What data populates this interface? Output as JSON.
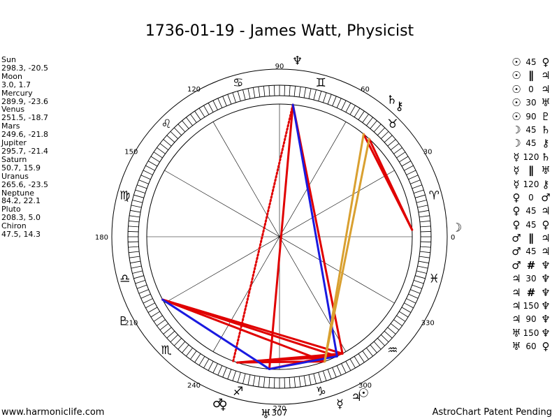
{
  "title": "1736-01-19 - James Watt, Physicist",
  "planets": [
    {
      "name": "Sun",
      "pos": "298.3, -20.5"
    },
    {
      "name": "Moon",
      "pos": "3.0, 1.7"
    },
    {
      "name": "Mercury",
      "pos": "289.9, -23.6"
    },
    {
      "name": "Venus",
      "pos": "251.5, -18.7"
    },
    {
      "name": "Mars",
      "pos": "249.6, -21.8"
    },
    {
      "name": "Jupiter",
      "pos": "295.7, -21.4"
    },
    {
      "name": "Saturn",
      "pos": "50.7, 15.9"
    },
    {
      "name": "Uranus",
      "pos": "265.6, -23.5"
    },
    {
      "name": "Neptune",
      "pos": "84.2, 22.1"
    },
    {
      "name": "Pluto",
      "pos": "208.3, 5.0"
    },
    {
      "name": "Chiron",
      "pos": "47.5, 14.3"
    }
  ],
  "aspects": [
    {
      "a": "☉",
      "type": "45",
      "b": "♀"
    },
    {
      "a": "☉",
      "type": "∥",
      "b": "♃"
    },
    {
      "a": "☉",
      "type": "0",
      "b": "♃"
    },
    {
      "a": "☉",
      "type": "30",
      "b": "♅"
    },
    {
      "a": "☉",
      "type": "90",
      "b": "♇"
    },
    {
      "a": "☽",
      "type": "45",
      "b": "♄"
    },
    {
      "a": "☽",
      "type": "45",
      "b": "⚷"
    },
    {
      "a": "☿",
      "type": "120",
      "b": "♄"
    },
    {
      "a": "☿",
      "type": "∥",
      "b": "♅"
    },
    {
      "a": "☿",
      "type": "120",
      "b": "⚷"
    },
    {
      "a": "♀",
      "type": "0",
      "b": "♂"
    },
    {
      "a": "♀",
      "type": "45",
      "b": "♃"
    },
    {
      "a": "♀",
      "type": "45",
      "b": "♀"
    },
    {
      "a": "♂",
      "type": "∥",
      "b": "♃"
    },
    {
      "a": "♂",
      "type": "45",
      "b": "♃"
    },
    {
      "a": "♂",
      "type": "#",
      "b": "♆"
    },
    {
      "a": "♃",
      "type": "30",
      "b": "♆"
    },
    {
      "a": "♃",
      "type": "#",
      "b": "♆"
    },
    {
      "a": "♃",
      "type": "150",
      "b": "♆"
    },
    {
      "a": "♃",
      "type": "90",
      "b": "♆"
    },
    {
      "a": "♅",
      "type": "150",
      "b": "♆"
    },
    {
      "a": "♅",
      "type": "60",
      "b": "♀"
    }
  ],
  "wheel": {
    "degree_labels": [
      "0",
      "30",
      "60",
      "90",
      "120",
      "150",
      "180",
      "210",
      "240",
      "270",
      "300",
      "330"
    ],
    "zodiac_signs": [
      {
        "glyph": "♈",
        "name": "aries-icon",
        "lon": 15
      },
      {
        "glyph": "♉",
        "name": "taurus-icon",
        "lon": 45
      },
      {
        "glyph": "♊",
        "name": "gemini-icon",
        "lon": 75
      },
      {
        "glyph": "♋",
        "name": "cancer-icon",
        "lon": 105
      },
      {
        "glyph": "♌",
        "name": "leo-icon",
        "lon": 135
      },
      {
        "glyph": "♍",
        "name": "virgo-icon",
        "lon": 165
      },
      {
        "glyph": "♎",
        "name": "libra-icon",
        "lon": 195
      },
      {
        "glyph": "♏",
        "name": "scorpio-icon",
        "lon": 225
      },
      {
        "glyph": "♐",
        "name": "sagittarius-icon",
        "lon": 255
      },
      {
        "glyph": "♑",
        "name": "capricorn-icon",
        "lon": 285
      },
      {
        "glyph": "♒",
        "name": "aquarius-icon",
        "lon": 315
      },
      {
        "glyph": "♓",
        "name": "pisces-icon",
        "lon": 345
      }
    ],
    "planet_marks": [
      {
        "glyph": "☉",
        "name": "sun-icon",
        "lon": 298.3
      },
      {
        "glyph": "☽",
        "name": "moon-icon",
        "lon": 3.0
      },
      {
        "glyph": "☿",
        "name": "mercury-icon",
        "lon": 289.9
      },
      {
        "glyph": "♀",
        "name": "venus-icon",
        "lon": 251.5
      },
      {
        "glyph": "♂",
        "name": "mars-icon",
        "lon": 249.6
      },
      {
        "glyph": "♃",
        "name": "jupiter-icon",
        "lon": 295.7
      },
      {
        "glyph": "♄",
        "name": "saturn-icon",
        "lon": 50.7
      },
      {
        "glyph": "♅",
        "name": "uranus-icon",
        "lon": 265.6
      },
      {
        "glyph": "♆",
        "name": "neptune-icon",
        "lon": 84.2
      },
      {
        "glyph": "♇",
        "name": "pluto-icon",
        "lon": 208.3
      },
      {
        "glyph": "⚷",
        "name": "chiron-icon",
        "lon": 47.5
      }
    ],
    "extra_labels": [
      "307"
    ],
    "aspect_lines": [
      {
        "from": 298.3,
        "to": 84.2,
        "color": "#e00000",
        "dash": false
      },
      {
        "from": 298.3,
        "to": 251.5,
        "color": "#e00000",
        "dash": false
      },
      {
        "from": 295.7,
        "to": 251.5,
        "color": "#e00000",
        "dash": false
      },
      {
        "from": 298.3,
        "to": 208.3,
        "color": "#e00000",
        "dash": false
      },
      {
        "from": 295.7,
        "to": 208.3,
        "color": "#e00000",
        "dash": false
      },
      {
        "from": 289.9,
        "to": 208.3,
        "color": "#e00000",
        "dash": false
      },
      {
        "from": 298.3,
        "to": 265.6,
        "color": "#e00000",
        "dash": false
      },
      {
        "from": 265.6,
        "to": 84.2,
        "color": "#e00000",
        "dash": false
      },
      {
        "from": 249.6,
        "to": 84.2,
        "color": "#e00000",
        "dash": true
      },
      {
        "from": 251.5,
        "to": 289.9,
        "color": "#e00000",
        "dash": false
      },
      {
        "from": 3.0,
        "to": 50.7,
        "color": "#e00000",
        "dash": false
      },
      {
        "from": 3.0,
        "to": 47.5,
        "color": "#e00000",
        "dash": false
      },
      {
        "from": 295.7,
        "to": 84.2,
        "color": "#1a1ae0",
        "dash": false
      },
      {
        "from": 265.6,
        "to": 208.3,
        "color": "#1a1ae0",
        "dash": false
      },
      {
        "from": 265.6,
        "to": 295.7,
        "color": "#1a1ae0",
        "dash": false
      },
      {
        "from": 289.9,
        "to": 50.7,
        "color": "#d9a030",
        "dash": false
      },
      {
        "from": 289.9,
        "to": 47.5,
        "color": "#d9a030",
        "dash": false
      }
    ]
  },
  "footer": {
    "left": "www.harmoniclife.com",
    "right": "AstroChart Patent Pending"
  }
}
